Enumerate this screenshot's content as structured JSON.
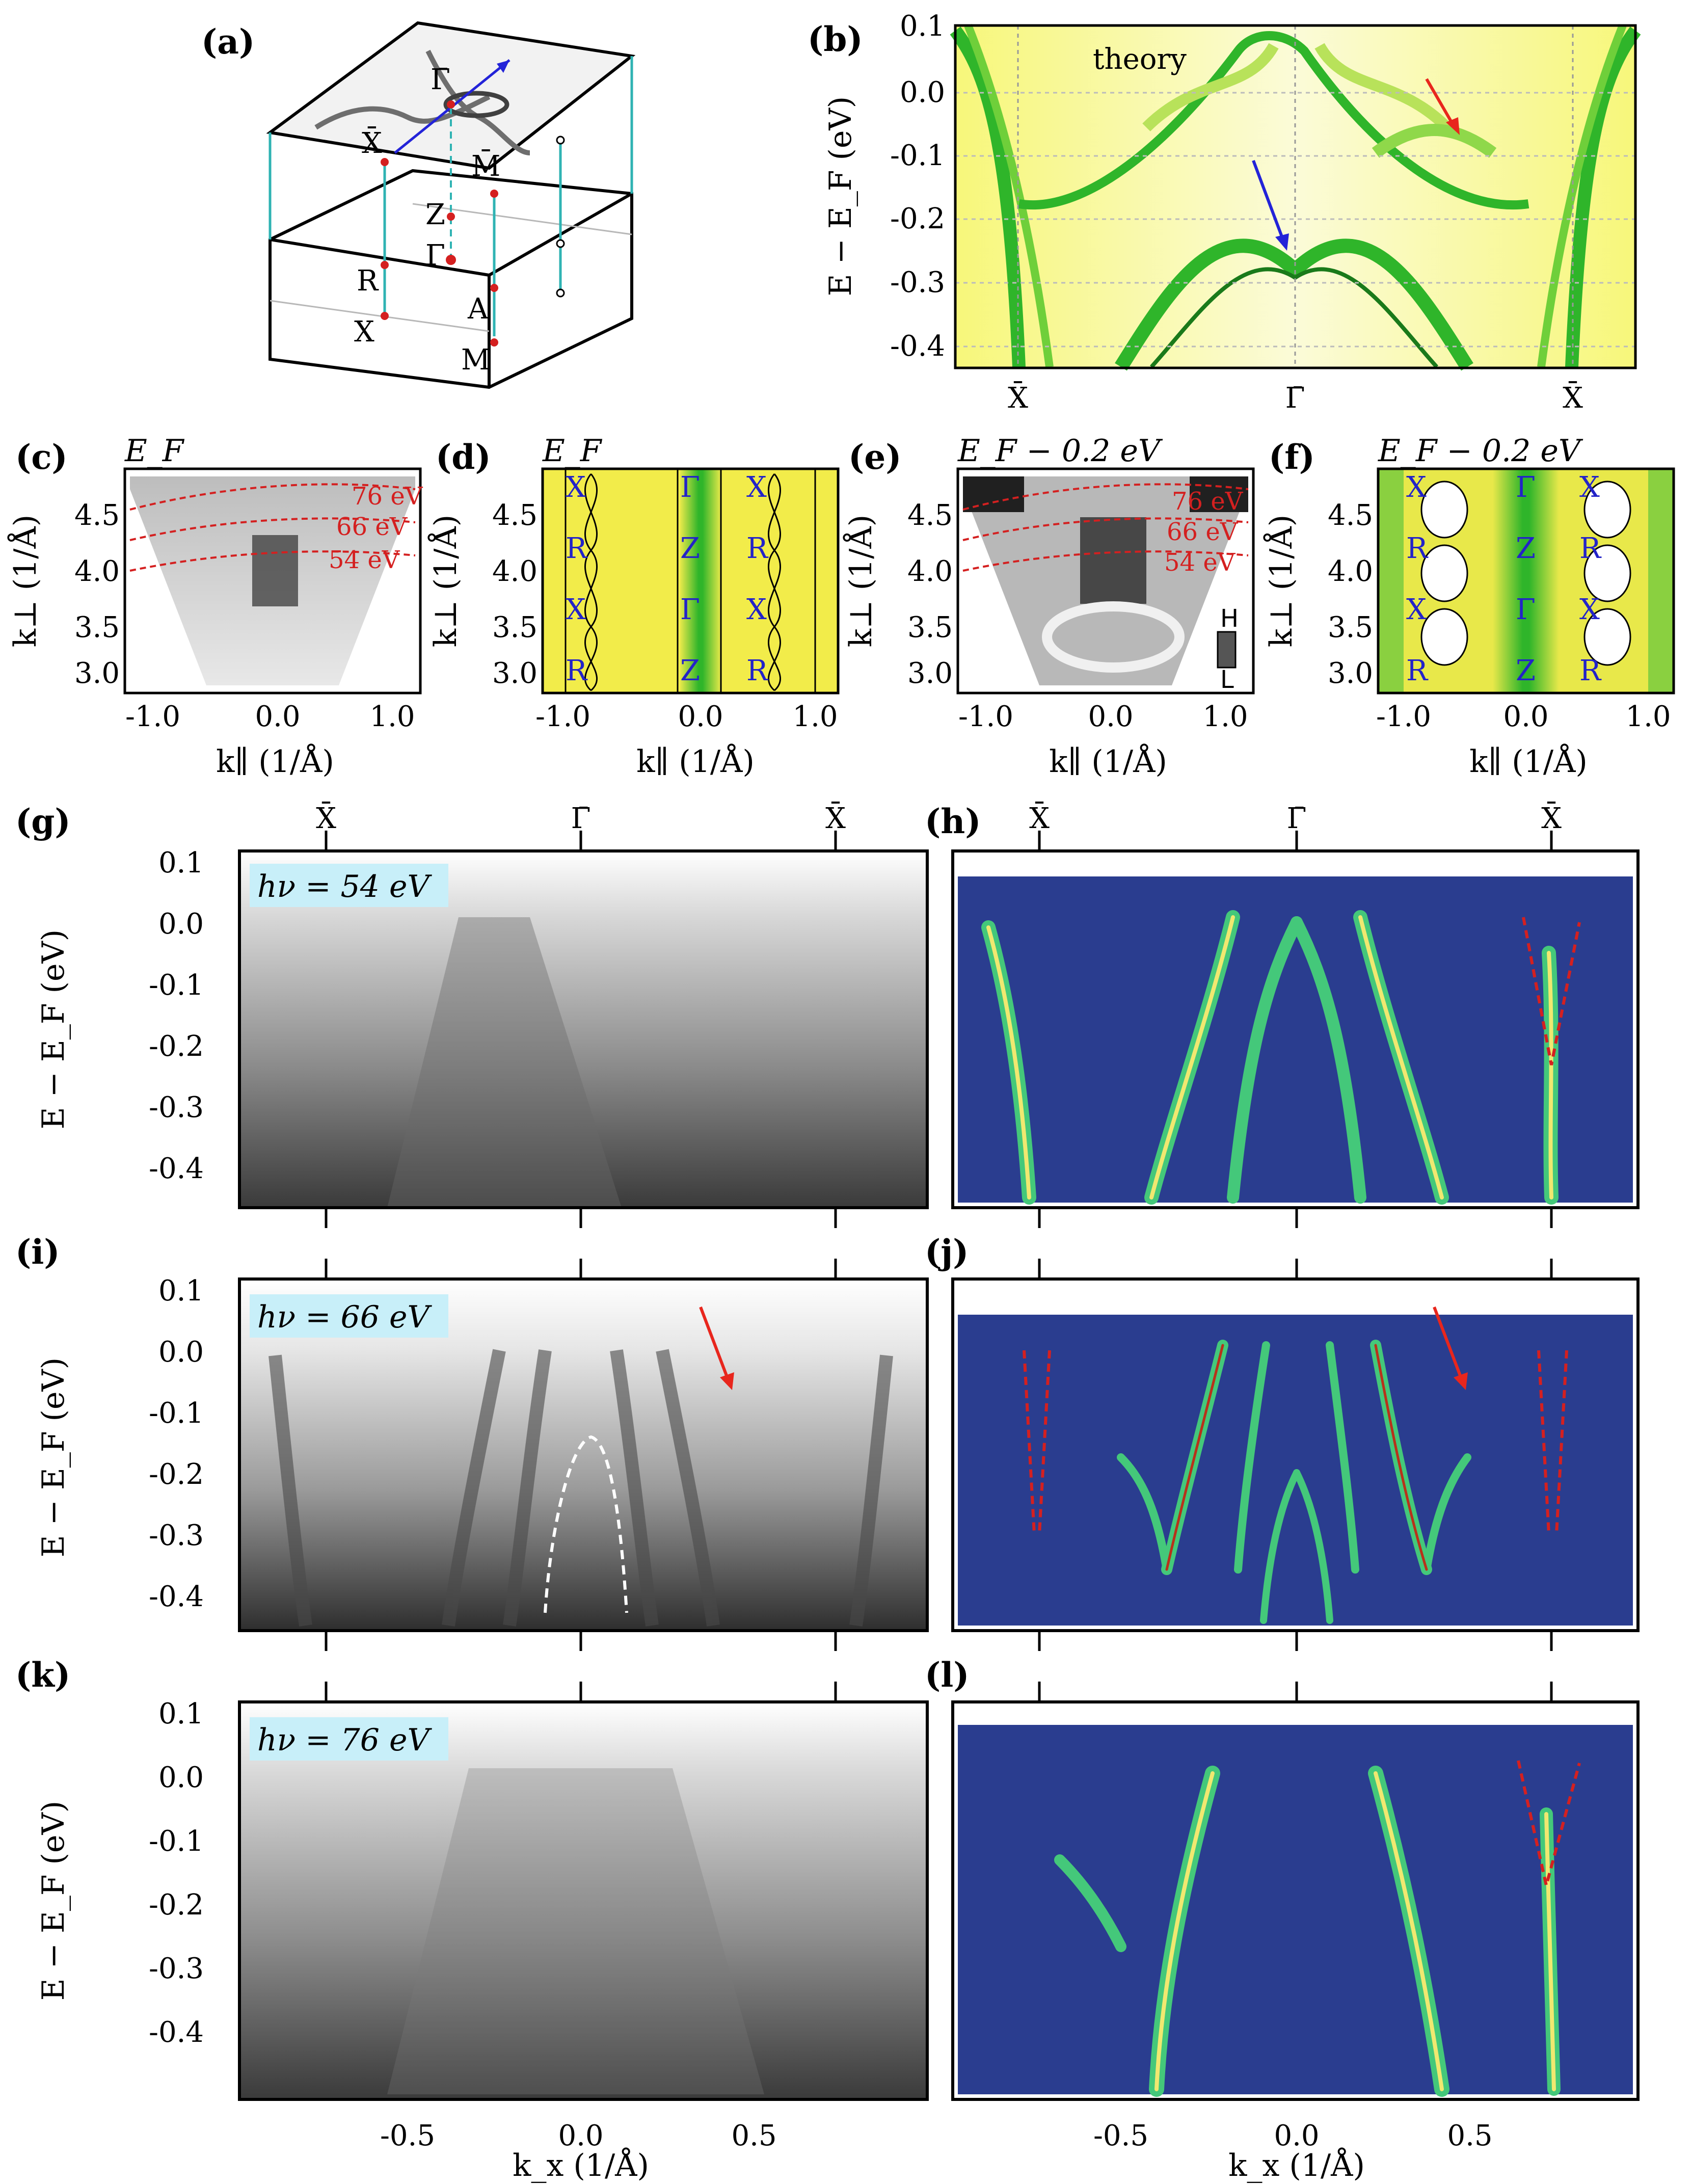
{
  "panels": {
    "a": {
      "label": "(a)",
      "points": [
        "Γ̄",
        "X̄",
        "M̄",
        "Z",
        "Γ",
        "R",
        "A",
        "X",
        "M"
      ]
    },
    "b": {
      "label": "(b)",
      "annotation": "theory",
      "ylabel": "E − E_F (eV)",
      "yticks": [
        "0.1",
        "0.0",
        "-0.1",
        "-0.2",
        "-0.3",
        "-0.4"
      ],
      "xticks": [
        "X̄",
        "Γ̄",
        "X̄"
      ]
    },
    "c": {
      "label": "(c)",
      "title": "E_F",
      "energies": [
        "76 eV",
        "66 eV",
        "54 eV"
      ]
    },
    "d": {
      "label": "(d)",
      "title": "E_F"
    },
    "e": {
      "label": "(e)",
      "title": "E_F − 0.2 eV",
      "energies": [
        "76 eV",
        "66 eV",
        "54 eV"
      ],
      "colorbar": [
        "H",
        "L"
      ]
    },
    "f": {
      "label": "(f)",
      "title": "E_F − 0.2 eV"
    },
    "g": {
      "label": "(g)",
      "photon": "hν = 54 eV"
    },
    "h": {
      "label": "(h)"
    },
    "i": {
      "label": "(i)",
      "photon": "hν = 66 eV"
    },
    "j": {
      "label": "(j)"
    },
    "k": {
      "label": "(k)",
      "photon": "hν = 76 eV"
    },
    "l": {
      "label": "(l)"
    }
  },
  "fs_axes": {
    "xlabel": "k∥ (1/Å)",
    "ylabel": "k⊥ (1/Å)",
    "xticks": [
      "-1.0",
      "0.0",
      "1.0"
    ],
    "yticks": [
      "4.5",
      "4.0",
      "3.5",
      "3.0"
    ],
    "d_labels_left": [
      "X",
      "R",
      "X",
      "R"
    ],
    "d_labels_mid": [
      "Γ",
      "Z",
      "Γ",
      "Z"
    ],
    "d_labels_right": [
      "X",
      "R",
      "X",
      "R"
    ]
  },
  "arpes_axes": {
    "top_ticks": [
      "X̄",
      "Γ̄",
      "X̄"
    ],
    "yticks": [
      "0.1",
      "0.0",
      "-0.1",
      "-0.2",
      "-0.3",
      "-0.4"
    ],
    "ylabel": "E − E_F (eV)",
    "xticks": [
      "-0.5",
      "0.0",
      "0.5"
    ],
    "xlabel": "k_x (1/Å)"
  },
  "colors": {
    "theory_green": "#2fb52a",
    "theory_yellow": "#f2f25a",
    "arrow_red": "#e8261d",
    "arrow_blue": "#2323d8",
    "label_blue": "#2323c8",
    "dash_red": "#d42020",
    "cyan_box": "#c8eff9",
    "map_blue": "#2a3d8f"
  }
}
